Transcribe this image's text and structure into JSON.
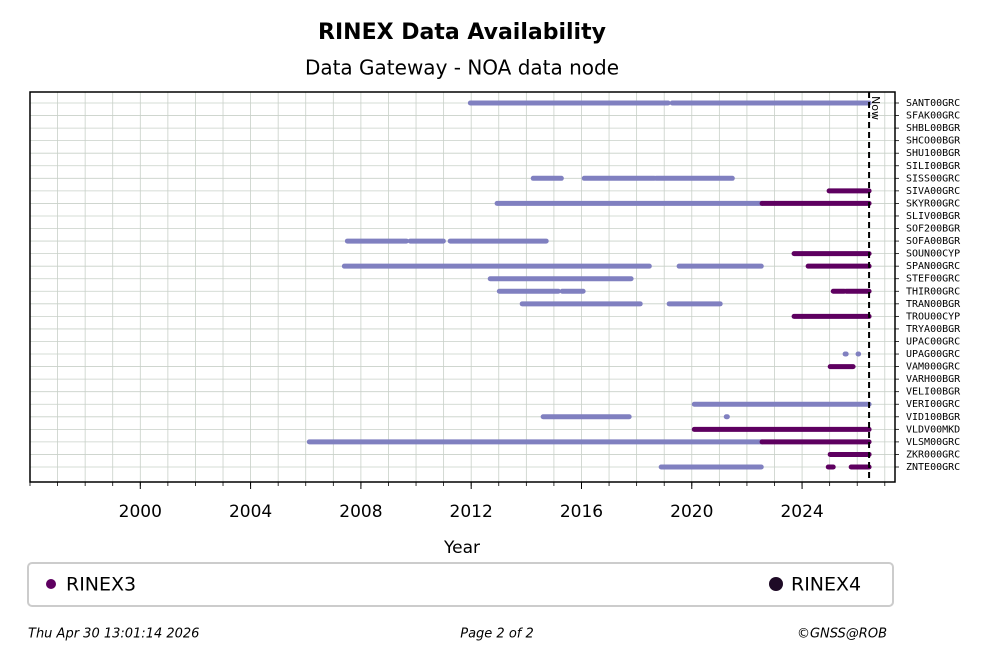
{
  "chart_data": {
    "type": "timeline",
    "title": "RINEX Data Availability",
    "subtitle": "Data Gateway - NOA data node",
    "x_label": "Year",
    "categories": [
      "SANT00GRC",
      "SFAK00GRC",
      "SHBL00BGR",
      "SHCO00BGR",
      "SHU100BGR",
      "SILI00BGR",
      "SISS00GRC",
      "SIVA00GRC",
      "SKYR00GRC",
      "SLIV00BGR",
      "SOF200BGR",
      "SOFA00BGR",
      "SOUN00CYP",
      "SPAN00GRC",
      "STEF00GRC",
      "THIR00GRC",
      "TRAN00BGR",
      "TROU00CYP",
      "TRYA00BGR",
      "UPAC00GRC",
      "UPAG00GRC",
      "VAM000GRC",
      "VARH00BGR",
      "VELI00BGR",
      "VERI00GRC",
      "VID100BGR",
      "VLDV00MKD",
      "VLSM00GRC",
      "ZKR000GRC",
      "ZNTE00GRC"
    ],
    "series": [
      {
        "color": "#8080c0",
        "values": [
          [
            [
              2011.97,
              2019.14
            ],
            [
              2019.29,
              2026.43
            ]
          ],
          [],
          [],
          [],
          [],
          [],
          [
            [
              2014.25,
              2015.27
            ],
            [
              2016.1,
              2018.64
            ],
            [
              2018.71,
              2021.47
            ]
          ],
          [],
          [
            [
              2012.94,
              2022.55
            ]
          ],
          [],
          [],
          [
            [
              2007.51,
              2009.65
            ],
            [
              2009.79,
              2010.99
            ],
            [
              2011.24,
              2014.72
            ]
          ],
          [],
          [
            [
              2007.4,
              2018.46
            ],
            [
              2019.54,
              2022.52
            ]
          ],
          [
            [
              2012.69,
              2017.8
            ]
          ],
          [
            [
              2013.02,
              2015.16
            ],
            [
              2015.3,
              2016.06
            ]
          ],
          [
            [
              2013.85,
              2018.13
            ],
            [
              2019.18,
              2021.03
            ]
          ],
          [],
          [],
          [],
          [
            [
              2025.56,
              2025.6
            ],
            [
              2026.03,
              2026.05
            ]
          ],
          [],
          [],
          [],
          [
            [
              2020.09,
              2026.43
            ]
          ],
          [
            [
              2014.61,
              2017.73
            ],
            [
              2021.25,
              2021.29
            ]
          ],
          [],
          [
            [
              2006.13,
              2022.55
            ]
          ],
          [],
          [
            [
              2018.89,
              2022.52
            ]
          ]
        ]
      },
      {
        "name": "RINEX3",
        "color": "#5e0060",
        "values": [
          [],
          [],
          [],
          [],
          [],
          [],
          [],
          [
            [
              2024.98,
              2026.43
            ]
          ],
          [
            [
              2022.55,
              2026.43
            ]
          ],
          [],
          [],
          [],
          [
            [
              2023.71,
              2026.43
            ]
          ],
          [
            [
              2024.22,
              2026.43
            ]
          ],
          [],
          [
            [
              2025.13,
              2025.53
            ],
            [
              2025.6,
              2026.43
            ]
          ],
          [],
          [
            [
              2023.71,
              2026.43
            ]
          ],
          [],
          [],
          [],
          [
            [
              2025.02,
              2025.85
            ]
          ],
          [],
          [],
          [],
          [],
          [
            [
              2020.09,
              2026.43
            ]
          ],
          [
            [
              2022.55,
              2026.43
            ]
          ],
          [
            [
              2025.02,
              2026.43
            ]
          ],
          [
            [
              2024.95,
              2025.13
            ],
            [
              2025.78,
              2026.43
            ]
          ]
        ]
      },
      {
        "name": "RINEX4",
        "color": "#1e0a26",
        "values": [
          [],
          [],
          [],
          [],
          [],
          [],
          [],
          [],
          [],
          [],
          [],
          [],
          [],
          [],
          [],
          [],
          [],
          [],
          [],
          [],
          [],
          [],
          [],
          [],
          [],
          [],
          [],
          [],
          [],
          []
        ]
      }
    ],
    "xlim": [
      1996.0,
      2027.37
    ],
    "xticks": [
      2000,
      2004,
      2008,
      2012,
      2016,
      2020,
      2024
    ],
    "xgrid_step": 1,
    "grid": true,
    "now": 2026.43,
    "now_label": "Now",
    "footer": {
      "left": "Thu Apr 30 13:01:14 2026",
      "center": "Page 2 of 2",
      "right": "©GNSS@ROB"
    }
  }
}
